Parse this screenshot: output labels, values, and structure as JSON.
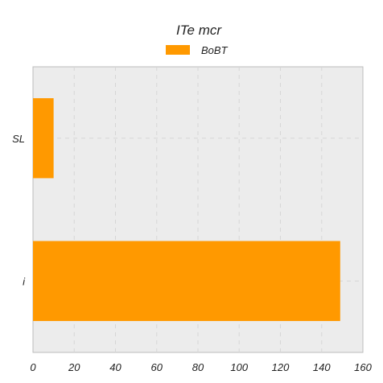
{
  "chart_data": {
    "type": "bar",
    "orientation": "horizontal",
    "title": "ITe mcr",
    "categories": [
      "SL",
      "i"
    ],
    "series": [
      {
        "name": "BoBT",
        "values": [
          10,
          149
        ],
        "color": "#ff9900"
      }
    ],
    "xlim": [
      0,
      160
    ],
    "xticks": [
      0,
      20,
      40,
      60,
      80,
      100,
      120,
      140,
      160
    ],
    "xlabel": "",
    "ylabel": "",
    "grid": true,
    "legend_position": "top-center",
    "background_color": "#ececec"
  }
}
